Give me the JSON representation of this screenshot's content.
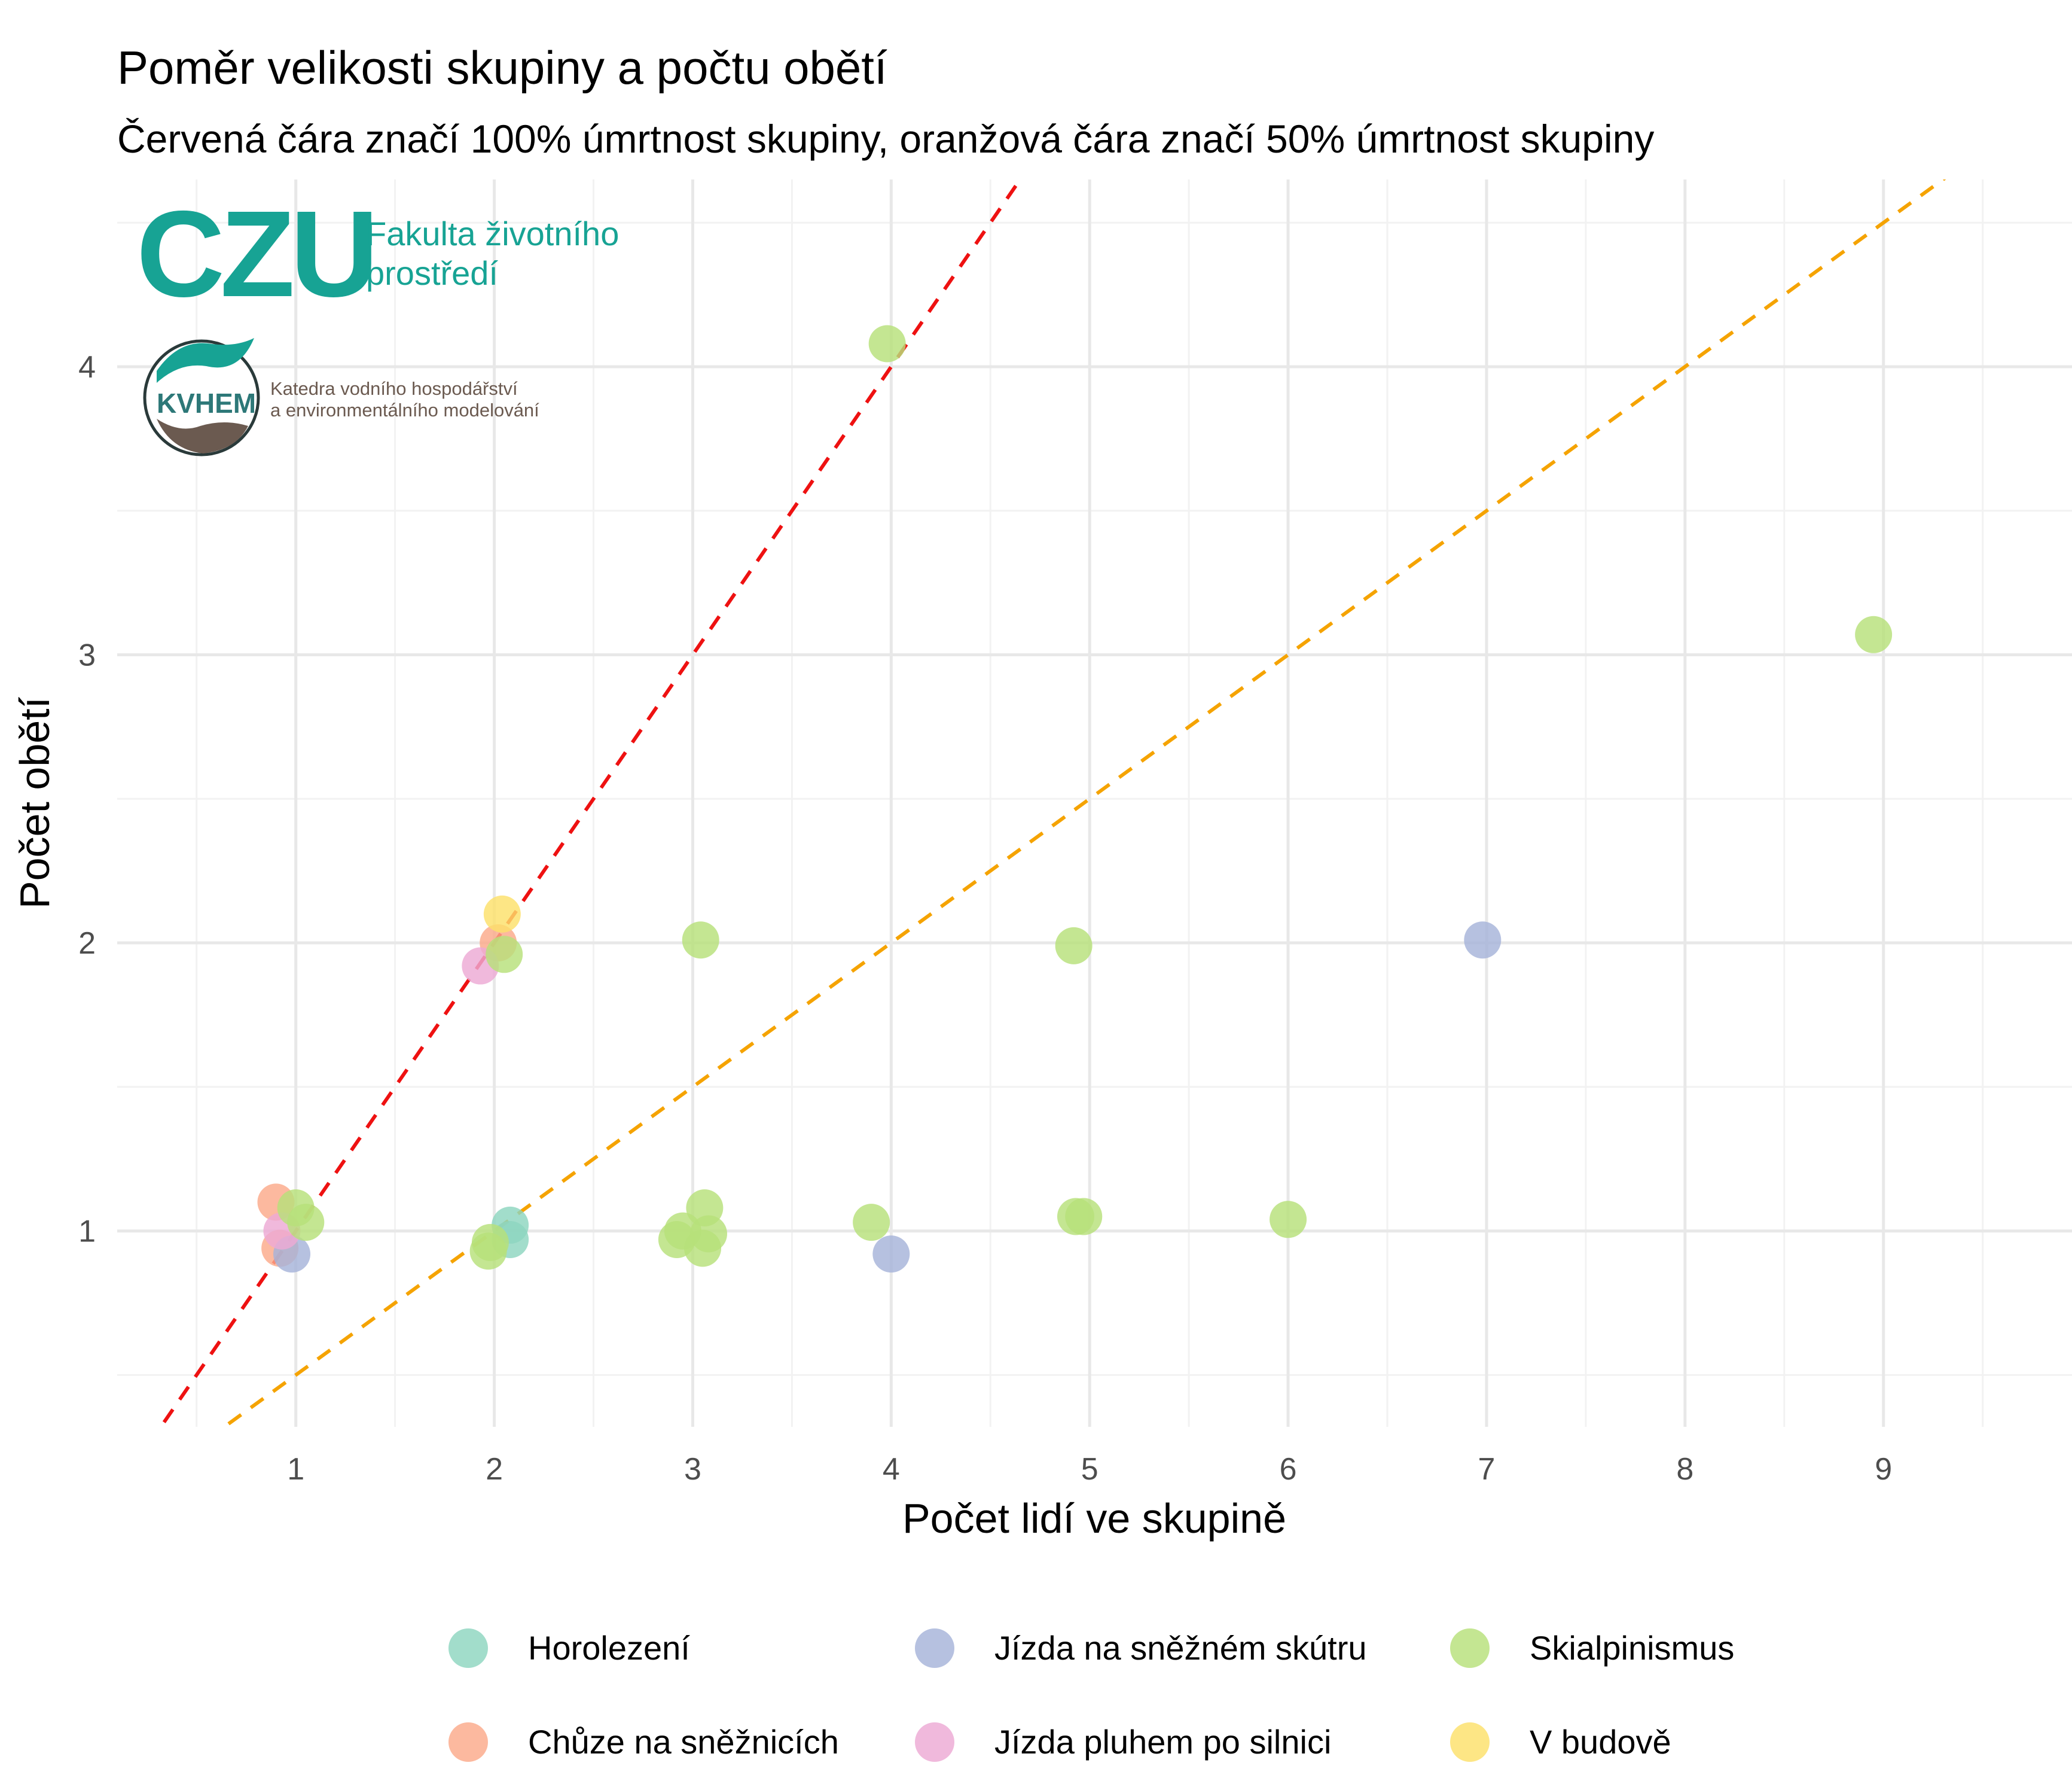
{
  "chart_data": {
    "type": "scatter",
    "title": "Poměr velikosti skupiny a počtu obětí",
    "subtitle": "Červená čára značí 100% úmrtnost skupiny, oranžová čára značí 50% úmrtnost skupiny",
    "xlabel": "Počet lidí ve skupině",
    "ylabel": "Počet obětí",
    "xlim": [
      0.1,
      9.95
    ],
    "ylim": [
      0.32,
      4.65
    ],
    "x_ticks": [
      "1",
      "2",
      "3",
      "4",
      "5",
      "6",
      "7",
      "8",
      "9"
    ],
    "y_ticks": [
      "1",
      "2",
      "3",
      "4"
    ],
    "grid": true,
    "legend_position": "bottom",
    "reference_lines": [
      {
        "slope": 1.0,
        "intercept": 0,
        "color": "#ee1111",
        "style": "dashed"
      },
      {
        "slope": 0.5,
        "intercept": 0,
        "color": "#f5a300",
        "style": "dashed"
      }
    ],
    "series": [
      {
        "name": "Horolezení",
        "color": "#8ed6c0",
        "points": [
          [
            2.08,
            1.02
          ],
          [
            2.08,
            0.97
          ]
        ]
      },
      {
        "name": "Chůze na sněžnicích",
        "color": "#fba98a",
        "points": [
          [
            0.9,
            1.1
          ],
          [
            0.92,
            0.94
          ],
          [
            2.02,
            2.0
          ]
        ]
      },
      {
        "name": "Jízda na sněžném skútru",
        "color": "#a6b3d9",
        "points": [
          [
            0.98,
            0.92
          ],
          [
            4.0,
            0.92
          ],
          [
            6.98,
            2.01
          ]
        ]
      },
      {
        "name": "Jízda pluhem po silnici",
        "color": "#eda9d4",
        "points": [
          [
            0.93,
            1.0
          ],
          [
            1.93,
            1.92
          ]
        ]
      },
      {
        "name": "Skialpinismus",
        "color": "#b7e07a",
        "points": [
          [
            1.0,
            1.08
          ],
          [
            1.05,
            1.03
          ],
          [
            1.98,
            0.96
          ],
          [
            1.97,
            0.93
          ],
          [
            2.05,
            1.96
          ],
          [
            2.92,
            0.97
          ],
          [
            2.95,
            1.0
          ],
          [
            3.05,
            0.94
          ],
          [
            3.08,
            0.99
          ],
          [
            3.06,
            1.08
          ],
          [
            3.04,
            2.01
          ],
          [
            3.9,
            1.03
          ],
          [
            3.98,
            4.08
          ],
          [
            4.92,
            1.99
          ],
          [
            4.93,
            1.05
          ],
          [
            4.97,
            1.05
          ],
          [
            6.0,
            1.04
          ],
          [
            8.95,
            3.07
          ]
        ]
      },
      {
        "name": "V budově",
        "color": "#fde16a",
        "points": [
          [
            2.04,
            2.1
          ]
        ]
      }
    ]
  },
  "logos": {
    "czu_mark": "CZU",
    "czu_faculty": [
      "Fakulta životního",
      "prostředí"
    ],
    "kvhem_mark": "KVHEM",
    "kvhem_department": [
      "Katedra vodního hospodářství",
      "a environmentálního modelování"
    ],
    "czu_color": "#17a394",
    "kvhem_color": "#6b5a50"
  }
}
